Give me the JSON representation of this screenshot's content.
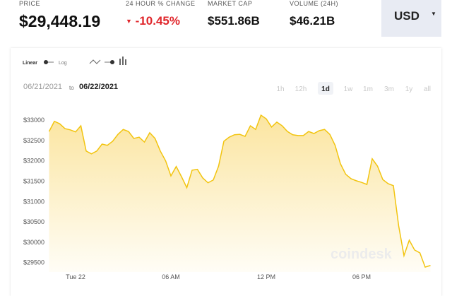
{
  "header": {
    "stats": [
      {
        "label": "PRICE",
        "value": "$29,448.19"
      },
      {
        "label": "24 HOUR % CHANGE",
        "value": "-10.45%"
      },
      {
        "label": "MARKET CAP",
        "value": "$551.86B"
      },
      {
        "label": "VOLUME (24H)",
        "value": "$46.21B"
      }
    ],
    "currency": "USD"
  },
  "controls": {
    "scales": [
      "Linear",
      "Log"
    ],
    "date_from": "06/21/2021",
    "date_sep": "to",
    "date_to": "06/22/2021",
    "ranges": [
      "1h",
      "12h",
      "1d",
      "1w",
      "1m",
      "3m",
      "1y",
      "all"
    ],
    "selected_range": "1d"
  },
  "watermark": "coindesk",
  "chart_data": {
    "type": "line",
    "color": "#f2c40f",
    "categories": [
      null,
      null,
      null,
      null,
      null,
      "Tue 22",
      null,
      null,
      null,
      null,
      null,
      null,
      null,
      null,
      null,
      null,
      null,
      null,
      null,
      null,
      null,
      null,
      null,
      "06 AM",
      null,
      null,
      null,
      null,
      null,
      null,
      null,
      null,
      null,
      null,
      null,
      null,
      null,
      null,
      null,
      null,
      null,
      "12 PM",
      null,
      null,
      null,
      null,
      null,
      null,
      null,
      null,
      null,
      null,
      null,
      null,
      null,
      null,
      null,
      null,
      null,
      "06 PM",
      null,
      null,
      null,
      null,
      null,
      null,
      null,
      null,
      null,
      null,
      null,
      null,
      null
    ],
    "values": [
      32720,
      32970,
      32910,
      32790,
      32760,
      32710,
      32860,
      32240,
      32170,
      32240,
      32410,
      32380,
      32480,
      32650,
      32770,
      32720,
      32550,
      32580,
      32460,
      32690,
      32550,
      32240,
      32000,
      31630,
      31860,
      31610,
      31340,
      31770,
      31790,
      31580,
      31460,
      31530,
      31870,
      32480,
      32580,
      32640,
      32650,
      32600,
      32860,
      32770,
      33120,
      33030,
      32830,
      32950,
      32860,
      32720,
      32640,
      32620,
      32620,
      32720,
      32670,
      32740,
      32770,
      32650,
      32380,
      31930,
      31670,
      31560,
      31510,
      31470,
      31420,
      32050,
      31870,
      31540,
      31440,
      31390,
      30400,
      29670,
      30050,
      29810,
      29740,
      29390,
      29430
    ],
    "ylim": [
      29270,
      33260
    ],
    "yticks": [
      {
        "value": 29500,
        "label": "$29500"
      },
      {
        "value": 30000,
        "label": "$30000"
      },
      {
        "value": 30500,
        "label": "$30500"
      },
      {
        "value": 31000,
        "label": "$31000"
      },
      {
        "value": 31500,
        "label": "$31500"
      },
      {
        "value": 32000,
        "label": "$32000"
      },
      {
        "value": 32500,
        "label": "$32500"
      },
      {
        "value": 33000,
        "label": "$33000"
      }
    ]
  }
}
